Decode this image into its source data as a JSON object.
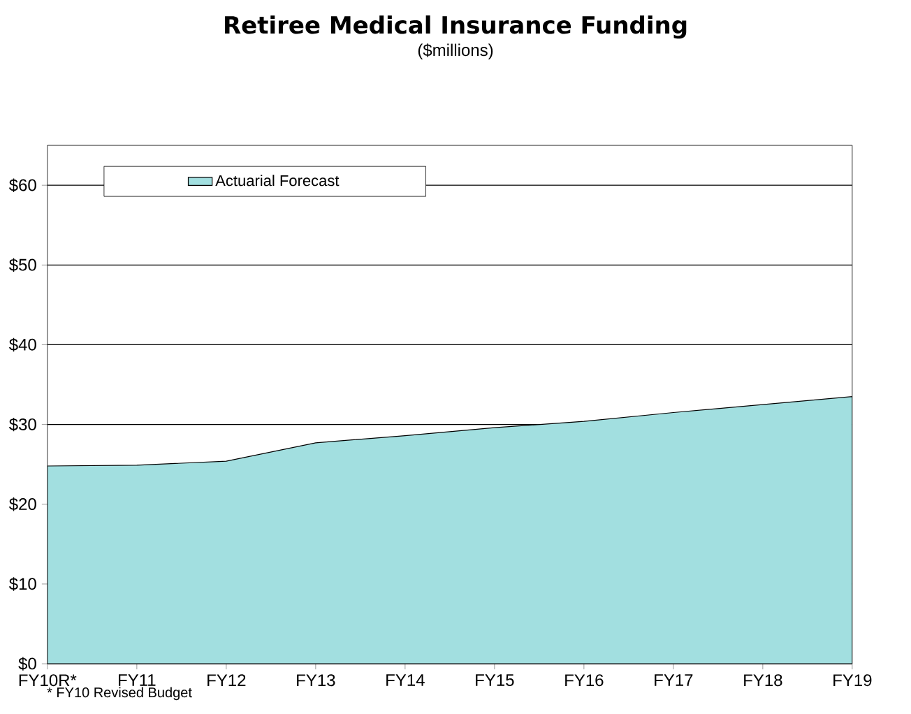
{
  "chart_data": {
    "type": "area",
    "title": "Retiree Medical Insurance Funding",
    "subtitle": "($millions)",
    "categories": [
      "FY10R*",
      "FY11",
      "FY12",
      "FY13",
      "FY14",
      "FY15",
      "FY16",
      "FY17",
      "FY18",
      "FY19"
    ],
    "series": [
      {
        "name": "Actuarial Forecast",
        "color": "#a2dfe0",
        "values": [
          24.8,
          24.9,
          25.4,
          27.7,
          28.6,
          29.6,
          30.4,
          31.5,
          32.5,
          33.5
        ]
      }
    ],
    "ylim": [
      0,
      65
    ],
    "yticks": [
      {
        "value": 0,
        "label": "$0"
      },
      {
        "value": 10,
        "label": "$10"
      },
      {
        "value": 20,
        "label": "$20"
      },
      {
        "value": 30,
        "label": "$30"
      },
      {
        "value": 40,
        "label": "$40"
      },
      {
        "value": 50,
        "label": "$50"
      },
      {
        "value": 60,
        "label": "$60"
      }
    ],
    "grid": "y",
    "legend": "top left",
    "annotations": [
      "* FY10 Revised Budget"
    ]
  }
}
